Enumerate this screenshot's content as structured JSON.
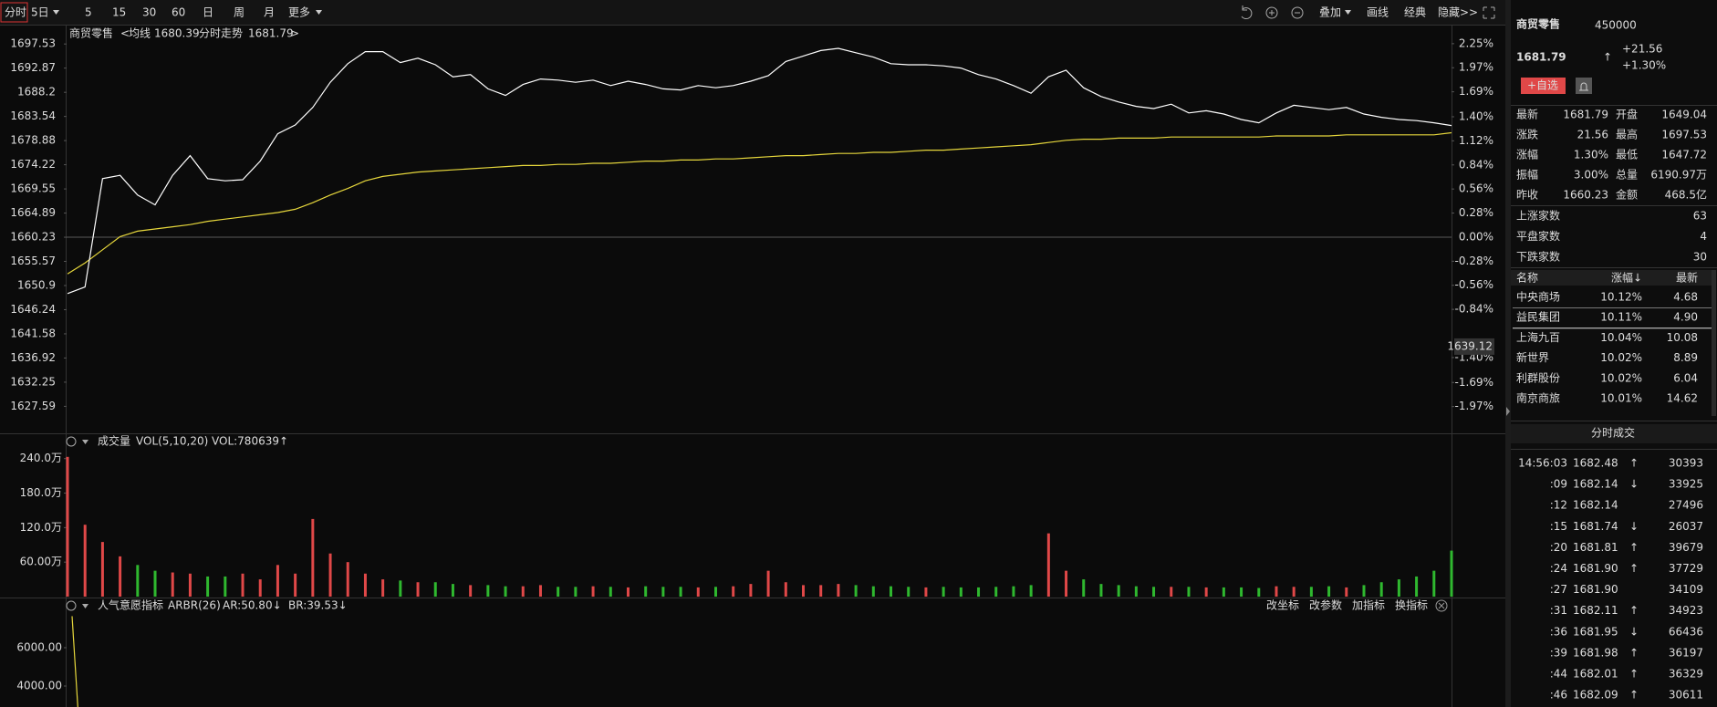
{
  "toolbar": {
    "periods": [
      "分时",
      "5日",
      "5",
      "15",
      "30",
      "60",
      "日",
      "周",
      "月",
      "更多"
    ],
    "tools": [
      "叠加",
      "画线",
      "经典",
      "隐藏>>"
    ]
  },
  "chart_data": [
    {
      "type": "line",
      "title": "商贸零售",
      "trend_label": "分时走势",
      "series": [
        {
          "name": "均线",
          "color": "#e6d73c",
          "last_label": "1680.39",
          "values": [
            1653.16,
            1655.27,
            1657.8,
            1660.34,
            1661.4,
            1661.82,
            1662.24,
            1662.66,
            1663.3,
            1663.72,
            1664.14,
            1664.57,
            1664.99,
            1665.62,
            1666.89,
            1668.37,
            1669.64,
            1671.12,
            1671.96,
            1672.38,
            1672.81,
            1673.02,
            1673.23,
            1673.44,
            1673.65,
            1673.86,
            1674.07,
            1674.07,
            1674.29,
            1674.29,
            1674.5,
            1674.5,
            1674.71,
            1674.92,
            1674.92,
            1675.13,
            1675.13,
            1675.34,
            1675.34,
            1675.55,
            1675.77,
            1675.98,
            1675.98,
            1676.19,
            1676.4,
            1676.4,
            1676.61,
            1676.61,
            1676.82,
            1677.03,
            1677.03,
            1677.24,
            1677.46,
            1677.67,
            1677.88,
            1678.09,
            1678.51,
            1678.93,
            1679.15,
            1679.15,
            1679.36,
            1679.36,
            1679.36,
            1679.57,
            1679.57,
            1679.57,
            1679.57,
            1679.57,
            1679.57,
            1679.78,
            1679.78,
            1679.78,
            1679.78,
            1679.99,
            1679.99,
            1679.99,
            1679.99,
            1679.99,
            1679.99,
            1680.39
          ]
        },
        {
          "name": "分时走势",
          "color": "#ffffff",
          "last_label": "1681.79",
          "values": [
            1649.35,
            1650.62,
            1671.54,
            1672.17,
            1668.37,
            1666.47,
            1672.17,
            1675.98,
            1671.54,
            1671.12,
            1671.33,
            1674.92,
            1680.2,
            1681.89,
            1685.27,
            1690.13,
            1693.73,
            1696.05,
            1696.05,
            1693.94,
            1694.78,
            1693.51,
            1691.19,
            1691.61,
            1688.87,
            1687.6,
            1689.71,
            1690.77,
            1690.56,
            1690.13,
            1690.56,
            1689.5,
            1690.34,
            1689.71,
            1688.87,
            1688.65,
            1689.5,
            1689.08,
            1689.5,
            1690.34,
            1691.4,
            1694.15,
            1695.2,
            1696.26,
            1696.68,
            1695.84,
            1694.99,
            1693.73,
            1693.51,
            1693.51,
            1693.3,
            1692.88,
            1691.61,
            1690.77,
            1689.5,
            1688.02,
            1691.19,
            1692.46,
            1689.08,
            1687.39,
            1686.33,
            1685.49,
            1685.06,
            1685.91,
            1684.22,
            1684.64,
            1684.01,
            1682.95,
            1682.32,
            1684.22,
            1685.7,
            1685.27,
            1684.85,
            1685.27,
            1684.01,
            1683.37,
            1682.95,
            1682.74,
            1682.32,
            1681.79
          ]
        }
      ],
      "ylim": [
        1622.73,
        1700.91
      ],
      "yticks": [
        1697.53,
        1692.87,
        1688.2,
        1683.54,
        1678.88,
        1674.22,
        1669.55,
        1664.89,
        1660.23,
        1655.57,
        1650.9,
        1646.24,
        1641.58,
        1636.92,
        1632.25,
        1627.59
      ],
      "y2lim": [
        -2.26,
        2.45
      ],
      "y2ticks": [
        {
          "value": 2.25,
          "label": "2.25%"
        },
        {
          "value": 1.97,
          "label": "1.97%"
        },
        {
          "value": 1.69,
          "label": "1.69%"
        },
        {
          "value": 1.4,
          "label": "1.40%"
        },
        {
          "value": 1.12,
          "label": "1.12%"
        },
        {
          "value": 0.84,
          "label": "0.84%"
        },
        {
          "value": 0.56,
          "label": "0.56%"
        },
        {
          "value": 0.28,
          "label": "0.28%"
        },
        {
          "value": 0,
          "label": "0.00%"
        },
        {
          "value": -0.28,
          "label": "-0.28%"
        },
        {
          "value": -0.56,
          "label": "-0.56%"
        },
        {
          "value": -0.84,
          "label": "-0.84%"
        },
        {
          "value": -1.4,
          "label": "-1.40%"
        },
        {
          "value": -1.69,
          "label": "-1.69%"
        },
        {
          "value": -1.97,
          "label": "-1.97%"
        }
      ],
      "cursor_value": 1639.12
    },
    {
      "type": "bar",
      "title": "成交量",
      "indicator": "VOL(5,10,20)",
      "readout": "VOL:780639↑",
      "ylim": [
        0,
        257
      ],
      "yticks": [
        {
          "value": 240,
          "label": "240.0万"
        },
        {
          "value": 180,
          "label": "180.0万"
        },
        {
          "value": 120,
          "label": "120.0万"
        },
        {
          "value": 60,
          "label": "60.00万"
        }
      ],
      "values": [
        243,
        125,
        95,
        70,
        55,
        45,
        42,
        40,
        35,
        35,
        40,
        30,
        55,
        40,
        135,
        75,
        60,
        40,
        30,
        28,
        25,
        25,
        22,
        20,
        20,
        18,
        18,
        20,
        17,
        17,
        18,
        17,
        16,
        18,
        17,
        17,
        16,
        17,
        18,
        22,
        45,
        25,
        20,
        20,
        22,
        20,
        18,
        18,
        17,
        16,
        17,
        16,
        16,
        17,
        18,
        20,
        110,
        45,
        30,
        22,
        20,
        18,
        17,
        17,
        17,
        16,
        16,
        16,
        15,
        18,
        17,
        17,
        18,
        16,
        20,
        25,
        30,
        35,
        45,
        80
      ]
    },
    {
      "type": "line",
      "title": "人气意愿指标",
      "indicator": "ARBR(26)",
      "readouts": [
        "AR:50.80↓",
        "BR:39.53↓"
      ],
      "buttons": [
        "改坐标",
        "改参数",
        "加指标",
        "换指标"
      ],
      "ylim": [
        2905,
        7762
      ],
      "yticks": [
        {
          "value": 6000,
          "label": "6000.00"
        },
        {
          "value": 4000,
          "label": "4000.00"
        }
      ],
      "series": [
        {
          "color": "#e6d73c",
          "values": [
            7650,
            2905
          ]
        }
      ]
    }
  ],
  "quote": {
    "name": "商贸零售",
    "code": "450000",
    "price": "1681.79",
    "arrow": "↑",
    "change": "+21.56",
    "change_pct": "+1.30%",
    "watch": "+自选",
    "stats": [
      [
        "最新",
        "1681.79",
        "开盘",
        "1649.04"
      ],
      [
        "涨跌",
        "21.56",
        "最高",
        "1697.53"
      ],
      [
        "涨幅",
        "1.30%",
        "最低",
        "1647.72"
      ],
      [
        "振幅",
        "3.00%",
        "总量",
        "6190.97万"
      ],
      [
        "昨收",
        "1660.23",
        "金额",
        "468.5亿"
      ]
    ],
    "breadth": [
      [
        "上涨家数",
        "63"
      ],
      [
        "平盘家数",
        "4"
      ],
      [
        "下跌家数",
        "30"
      ]
    ]
  },
  "constituents": {
    "columns": [
      "名称",
      "涨幅↓",
      "最新"
    ],
    "rows": [
      [
        "中央商场",
        "10.12%",
        "4.68"
      ],
      [
        "益民集团",
        "10.11%",
        "4.90"
      ],
      [
        "上海九百",
        "10.04%",
        "10.08"
      ],
      [
        "新世界",
        "10.02%",
        "8.89"
      ],
      [
        "利群股份",
        "10.02%",
        "6.04"
      ],
      [
        "南京商旅",
        "10.01%",
        "14.62"
      ]
    ]
  },
  "trades": {
    "title": "分时成交",
    "rows": [
      {
        "time": "14:56:03",
        "price": "1682.48",
        "dir": "↑",
        "volume": "30393"
      },
      {
        "time": ":09",
        "price": "1682.14",
        "dir": "↓",
        "volume": "33925"
      },
      {
        "time": ":12",
        "price": "1682.14",
        "volume": "27496"
      },
      {
        "time": ":15",
        "price": "1681.74",
        "dir": "↓",
        "volume": "26037"
      },
      {
        "time": ":20",
        "price": "1681.81",
        "dir": "↑",
        "volume": "39679"
      },
      {
        "time": ":24",
        "price": "1681.90",
        "dir": "↑",
        "volume": "37729"
      },
      {
        "time": ":27",
        "price": "1681.90",
        "volume": "34109"
      },
      {
        "time": ":31",
        "price": "1682.11",
        "dir": "↑",
        "volume": "34923"
      },
      {
        "time": ":36",
        "price": "1681.95",
        "dir": "↓",
        "volume": "66436"
      },
      {
        "time": ":39",
        "price": "1681.98",
        "dir": "↑",
        "volume": "36197"
      },
      {
        "time": ":44",
        "price": "1682.01",
        "dir": "↑",
        "volume": "36329"
      },
      {
        "time": ":46",
        "price": "1682.09",
        "dir": "↑",
        "volume": "30611"
      }
    ]
  }
}
